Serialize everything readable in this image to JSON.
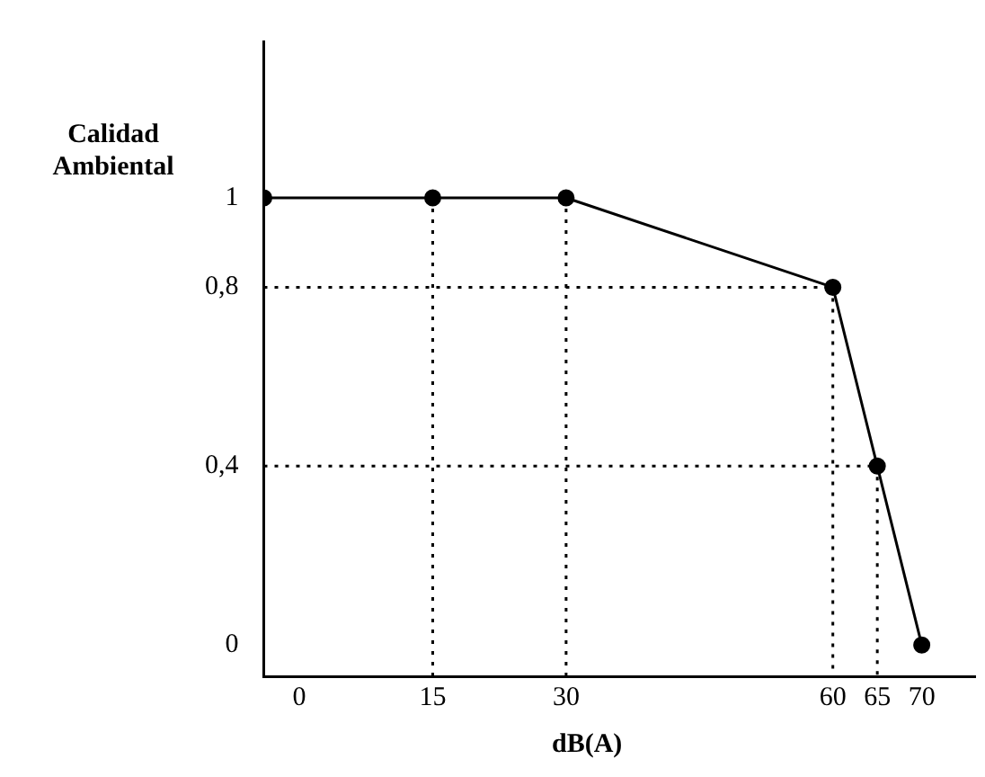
{
  "chart_data": {
    "type": "line",
    "xlabel": "dB(A)",
    "ylabel": "Calidad Ambiental",
    "xlim": [
      -4,
      76
    ],
    "ylim": [
      -0.07,
      1.35
    ],
    "xticks": [
      0,
      15,
      30,
      60,
      65,
      70
    ],
    "yticks": [
      0,
      {
        "value": 0.4,
        "label": "0,4"
      },
      {
        "value": 0.8,
        "label": "0,8"
      },
      1
    ],
    "grid": false,
    "legend": false,
    "series": [
      {
        "type": "line",
        "color": "#000000",
        "marker": "circle",
        "line_style": "solid",
        "x": [
          -4,
          15,
          30,
          60,
          65,
          70
        ],
        "values": [
          1,
          1,
          1,
          0.8,
          0.4,
          0
        ]
      },
      {
        "type": "line",
        "color": "#000000",
        "marker": "none",
        "line_style": "dotted",
        "x": [
          15,
          15
        ],
        "values": [
          1,
          -0.07
        ]
      },
      {
        "type": "line",
        "color": "#000000",
        "marker": "none",
        "line_style": "dotted",
        "x": [
          30,
          30
        ],
        "values": [
          1,
          -0.07
        ]
      },
      {
        "type": "line",
        "color": "#000000",
        "marker": "none",
        "line_style": "dotted",
        "x": [
          60,
          60
        ],
        "values": [
          0.8,
          -0.07
        ]
      },
      {
        "type": "line",
        "color": "#000000",
        "marker": "none",
        "line_style": "dotted",
        "x": [
          65,
          65
        ],
        "values": [
          0.4,
          -0.07
        ]
      },
      {
        "type": "line",
        "color": "#000000",
        "marker": "none",
        "line_style": "dotted",
        "x": [
          -4,
          60
        ],
        "values": [
          0.8,
          0.8
        ]
      },
      {
        "type": "line",
        "color": "#000000",
        "marker": "none",
        "line_style": "dotted",
        "x": [
          -4,
          65
        ],
        "values": [
          0.4,
          0.4
        ]
      }
    ]
  }
}
